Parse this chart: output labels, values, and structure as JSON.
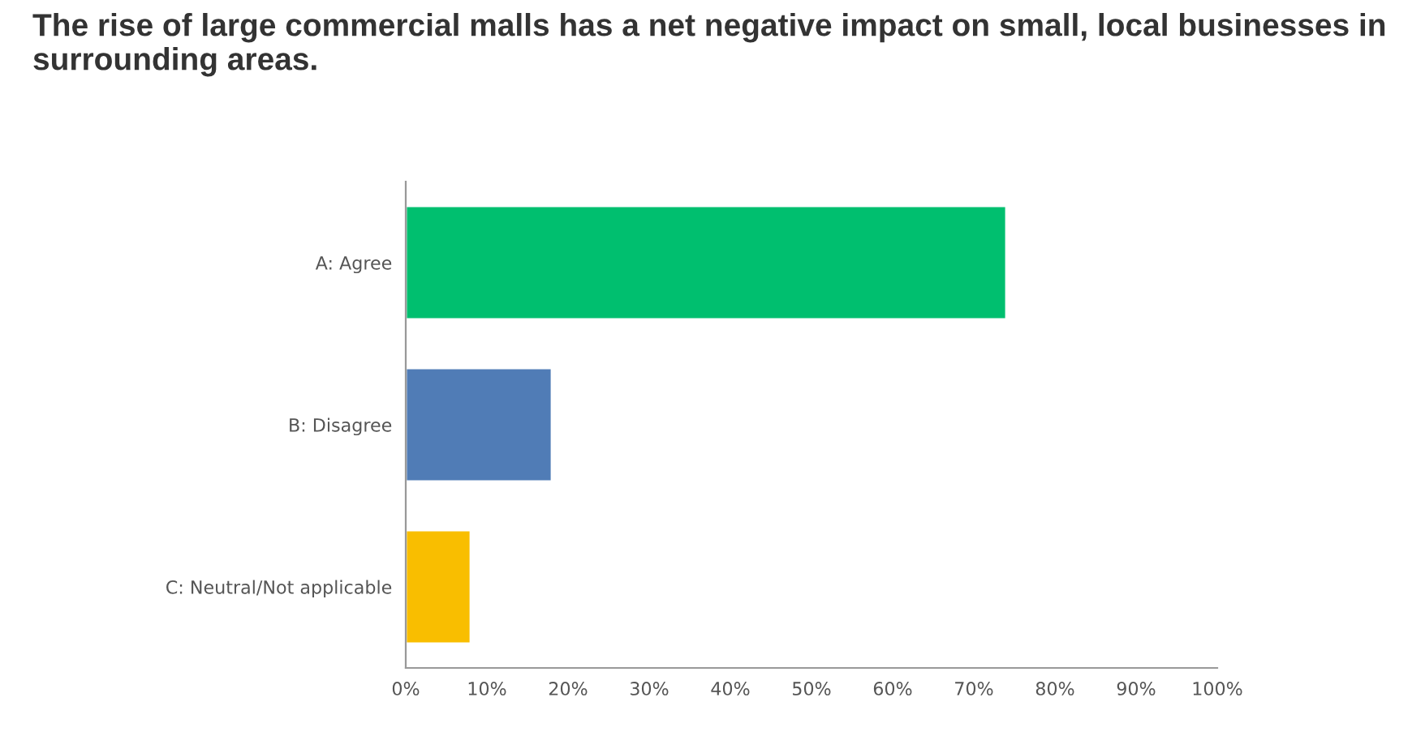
{
  "chart_data": {
    "type": "bar",
    "orientation": "horizontal",
    "title": "The rise of large commercial malls has a net negative impact on small, local businesses in surrounding areas.",
    "categories": [
      "A: Agree",
      "B: Disagree",
      "C: Neutral/Not applicable"
    ],
    "values": [
      74,
      18,
      8
    ],
    "colors": [
      "#00bf6f",
      "#507cb6",
      "#f9be00"
    ],
    "xlim": [
      0,
      100
    ],
    "xticks": [
      {
        "value": 0,
        "label": "0%"
      },
      {
        "value": 10,
        "label": "10%"
      },
      {
        "value": 20,
        "label": "20%"
      },
      {
        "value": 30,
        "label": "30%"
      },
      {
        "value": 40,
        "label": "40%"
      },
      {
        "value": 50,
        "label": "50%"
      },
      {
        "value": 60,
        "label": "60%"
      },
      {
        "value": 70,
        "label": "70%"
      },
      {
        "value": 80,
        "label": "80%"
      },
      {
        "value": 90,
        "label": "90%"
      },
      {
        "value": 100,
        "label": "100%"
      }
    ],
    "grid": false,
    "legend": false
  }
}
